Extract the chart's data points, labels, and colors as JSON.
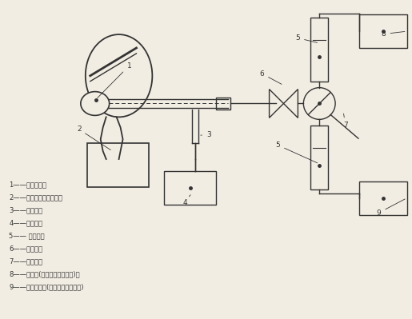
{
  "bg_color": "#f2ede3",
  "line_color": "#333333",
  "legend_lines": [
    "1——被测样品；",
    "2——试验头模呼吸管道；",
    "3——测压管；",
    "4——微压计；",
    "5—— 流量计；",
    "6——调节阀；",
    "7——切换阀；",
    "8——抽气泵(用于吸气阻力检测)；",
    "9——空气压缩机(用于呼气阻力检测)"
  ]
}
